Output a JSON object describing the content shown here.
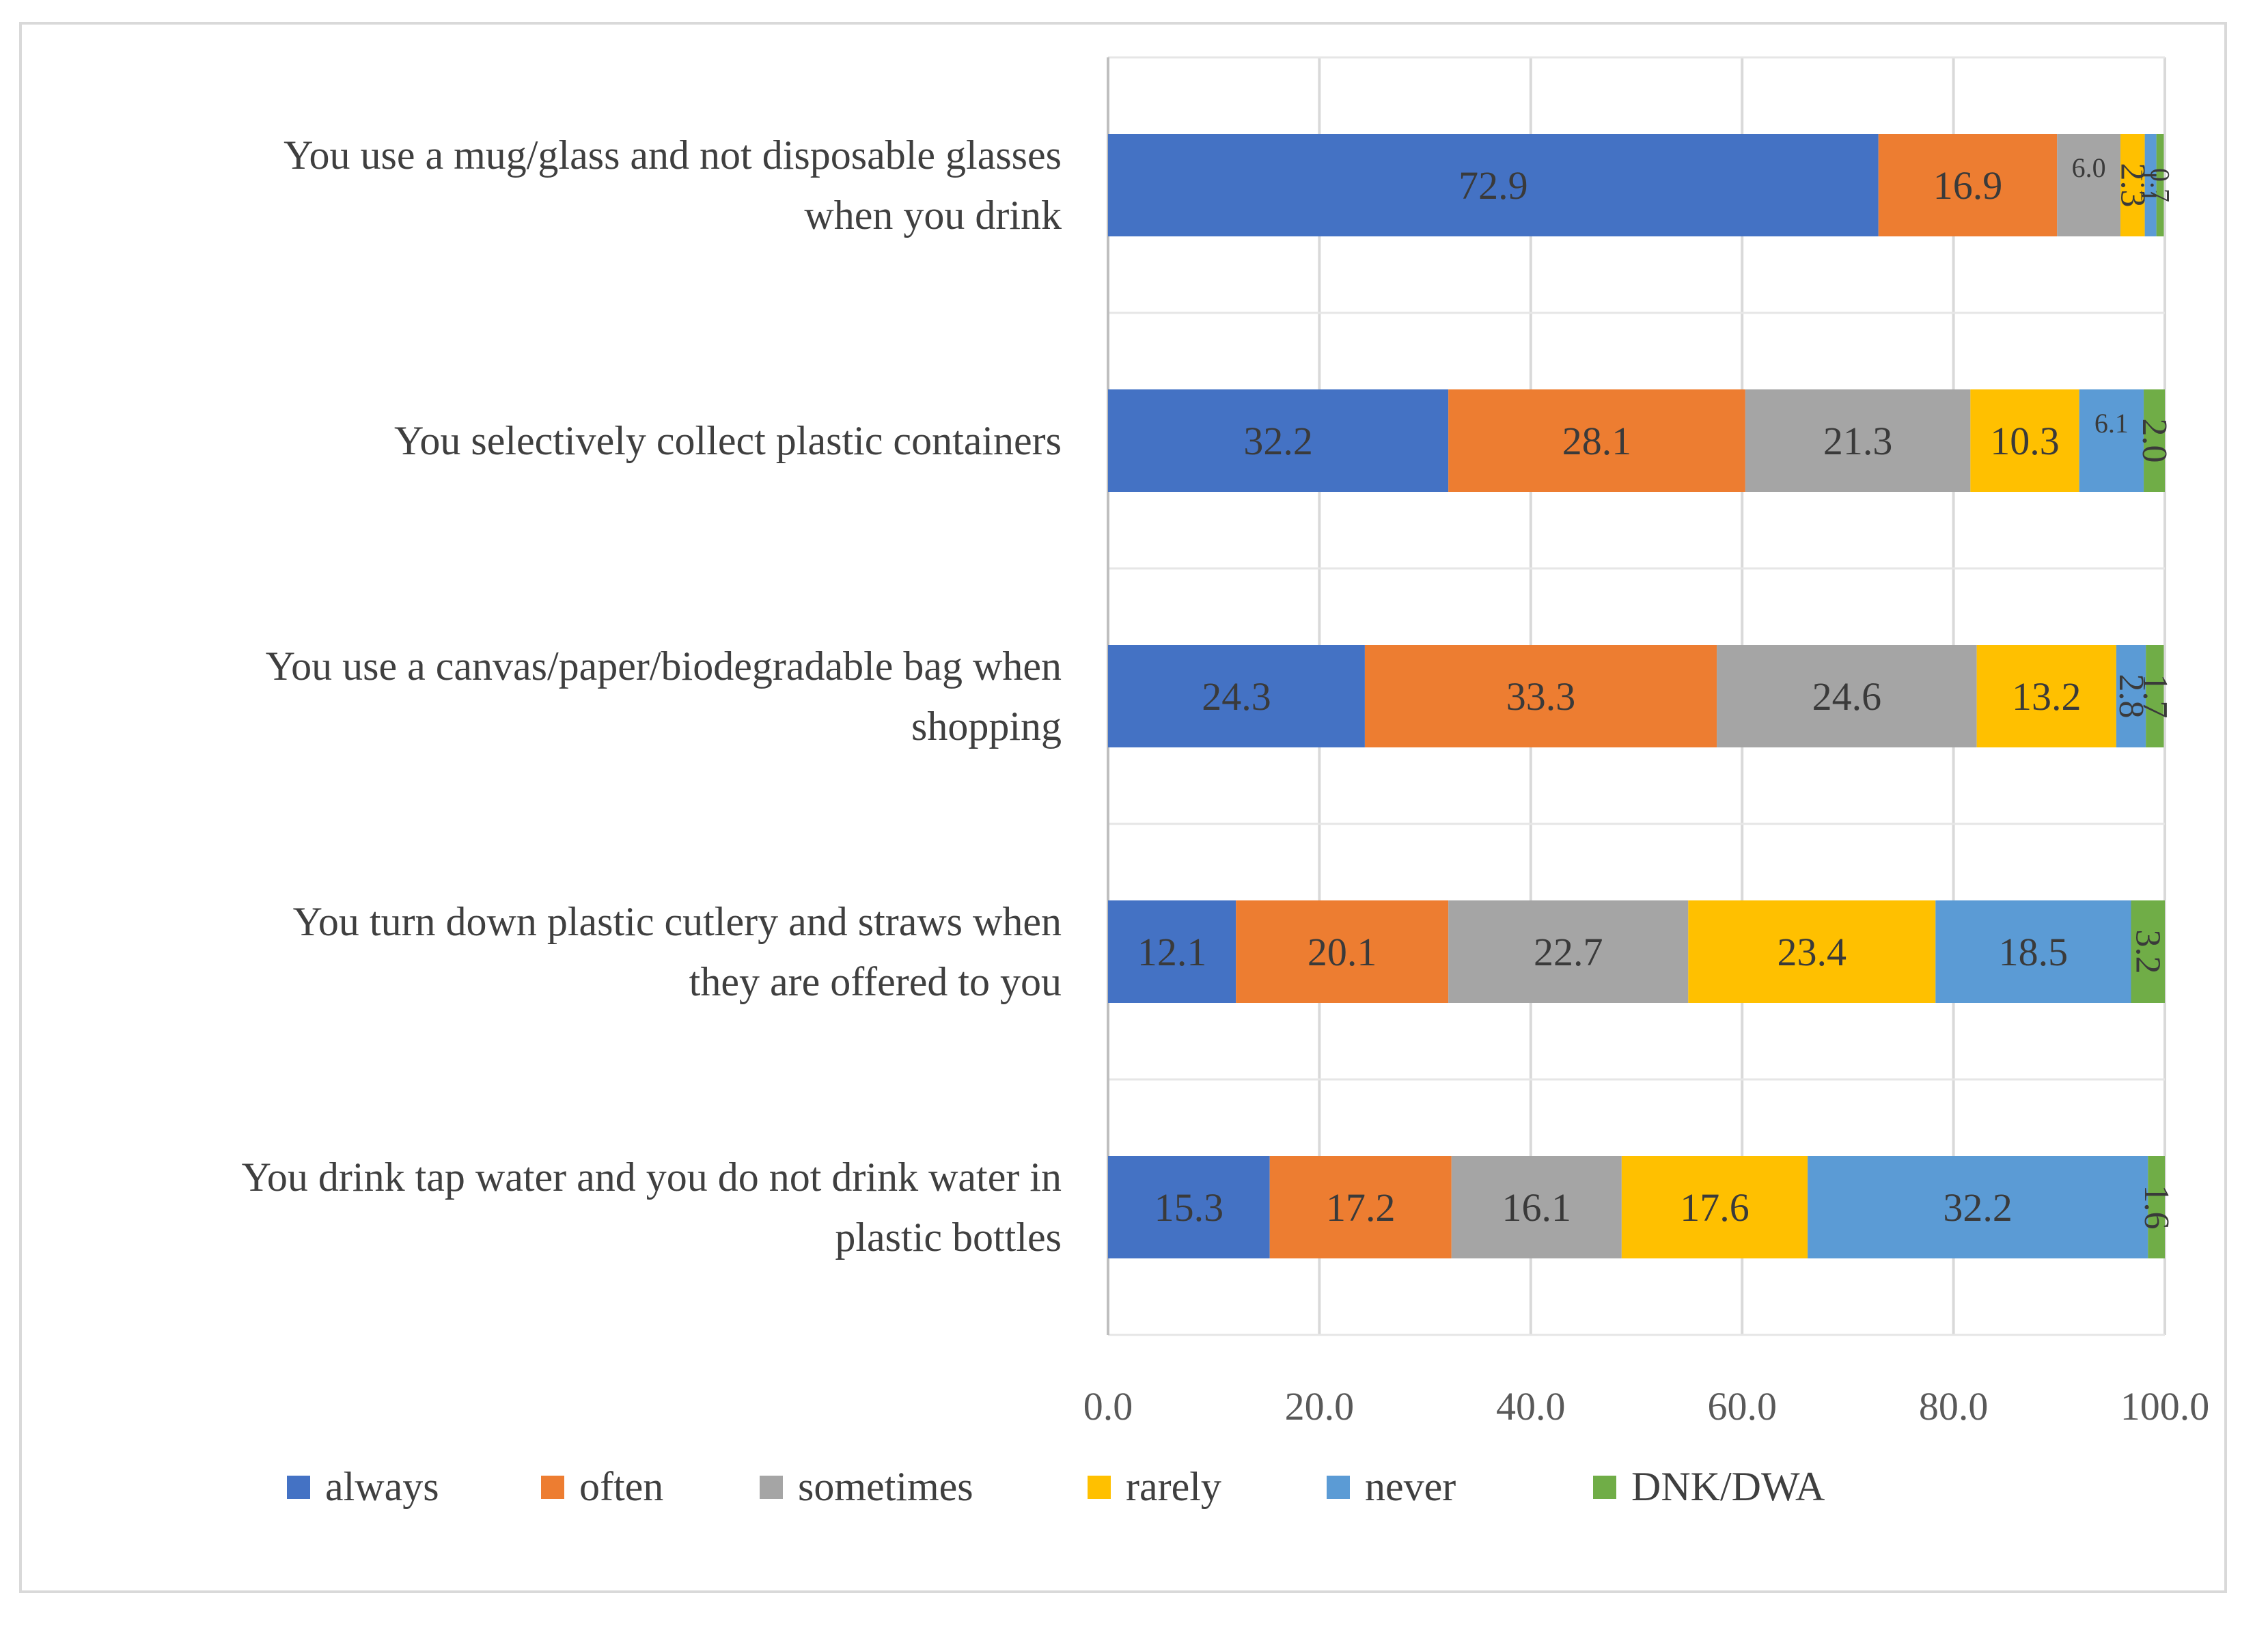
{
  "chart_data": {
    "type": "bar",
    "orientation": "horizontal",
    "stacked": true,
    "categories": [
      [
        "You use a mug/glass and not disposable glasses",
        "when you drink"
      ],
      [
        "You selectively collect plastic containers"
      ],
      [
        "You use a canvas/paper/biodegradable bag when",
        "shopping"
      ],
      [
        "You turn down plastic cutlery and straws when",
        "they are offered to you"
      ],
      [
        "You drink tap water and you do not drink water in",
        "plastic bottles"
      ]
    ],
    "series": [
      {
        "name": "always",
        "color": "#4472c4",
        "values": [
          72.9,
          32.2,
          24.3,
          12.1,
          15.3
        ],
        "labels": [
          "72.9",
          "32.2",
          "24.3",
          "12.1",
          "15.3"
        ]
      },
      {
        "name": "often",
        "color": "#ed7d31",
        "values": [
          16.9,
          28.1,
          33.3,
          20.1,
          17.2
        ],
        "labels": [
          "16.9",
          "28.1",
          "33.3",
          "20.1",
          "17.2"
        ]
      },
      {
        "name": "sometimes",
        "color": "#a5a5a5",
        "values": [
          6.0,
          21.3,
          24.6,
          22.7,
          16.1
        ],
        "labels": [
          "6.0",
          "21.3",
          "24.6",
          "22.7",
          "16.1"
        ]
      },
      {
        "name": "rarely",
        "color": "#ffc000",
        "values": [
          2.3,
          10.3,
          13.2,
          23.4,
          17.6
        ],
        "labels": [
          "2.3",
          "10.3",
          "13.2",
          "23.4",
          "17.6"
        ]
      },
      {
        "name": "never",
        "color": "#5b9bd5",
        "values": [
          1.1,
          6.1,
          2.8,
          18.5,
          32.2
        ],
        "labels": [
          "1.1",
          "6.1",
          "2.8",
          "18.5",
          "32.2"
        ]
      },
      {
        "name": "DNK/DWA",
        "color": "#70ad47",
        "values": [
          0.7,
          2.0,
          1.7,
          3.2,
          1.6
        ],
        "labels": [
          "0.7",
          "2.0",
          "1.7",
          "3.2",
          "1.6"
        ]
      }
    ],
    "xlim": [
      0,
      100
    ],
    "xticks": [
      0,
      20,
      40,
      60,
      80,
      100
    ],
    "xtick_labels": [
      "0.0",
      "20.0",
      "40.0",
      "60.0",
      "80.0",
      "100.0"
    ],
    "grid": true,
    "legend_position": "bottom",
    "title": "",
    "xlabel": "",
    "ylabel": ""
  }
}
